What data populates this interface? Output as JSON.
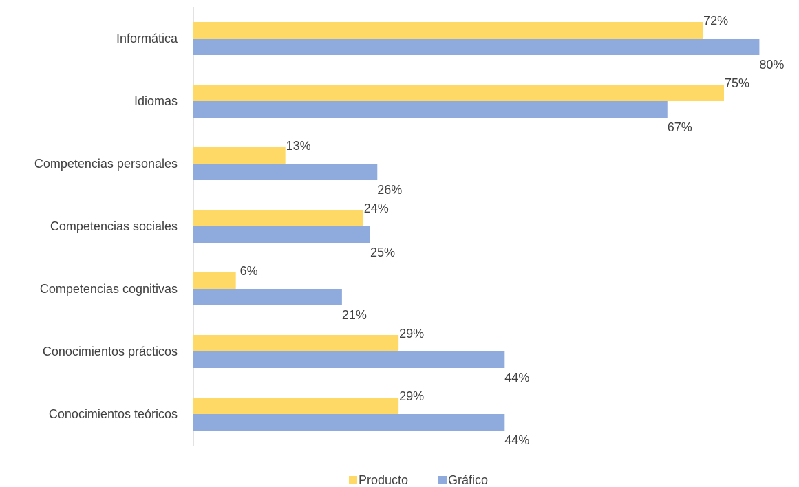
{
  "chart_data": {
    "type": "bar",
    "orientation": "horizontal",
    "title": "",
    "xlabel": "",
    "ylabel": "",
    "xlim": [
      0,
      1
    ],
    "grid": false,
    "legend_position": "bottom",
    "categories": [
      "Informática",
      "Idiomas",
      "Competencias personales",
      "Competencias sociales",
      "Competencias cognitivas",
      "Conocimientos prácticos",
      "Conocimientos teóricos"
    ],
    "series": [
      {
        "name": "Producto",
        "color": "#FFD966",
        "values": [
          0.72,
          0.75,
          0.13,
          0.24,
          0.06,
          0.29,
          0.29
        ],
        "labels": [
          "72%",
          "75%",
          "13%",
          "24%",
          "6%",
          "29%",
          "29%"
        ]
      },
      {
        "name": "Gráfico",
        "color": "#8FAADC",
        "values": [
          0.8,
          0.67,
          0.26,
          0.25,
          0.21,
          0.44,
          0.44
        ],
        "labels": [
          "80%",
          "67%",
          "26%",
          "25%",
          "21%",
          "44%",
          "44%"
        ]
      }
    ]
  }
}
